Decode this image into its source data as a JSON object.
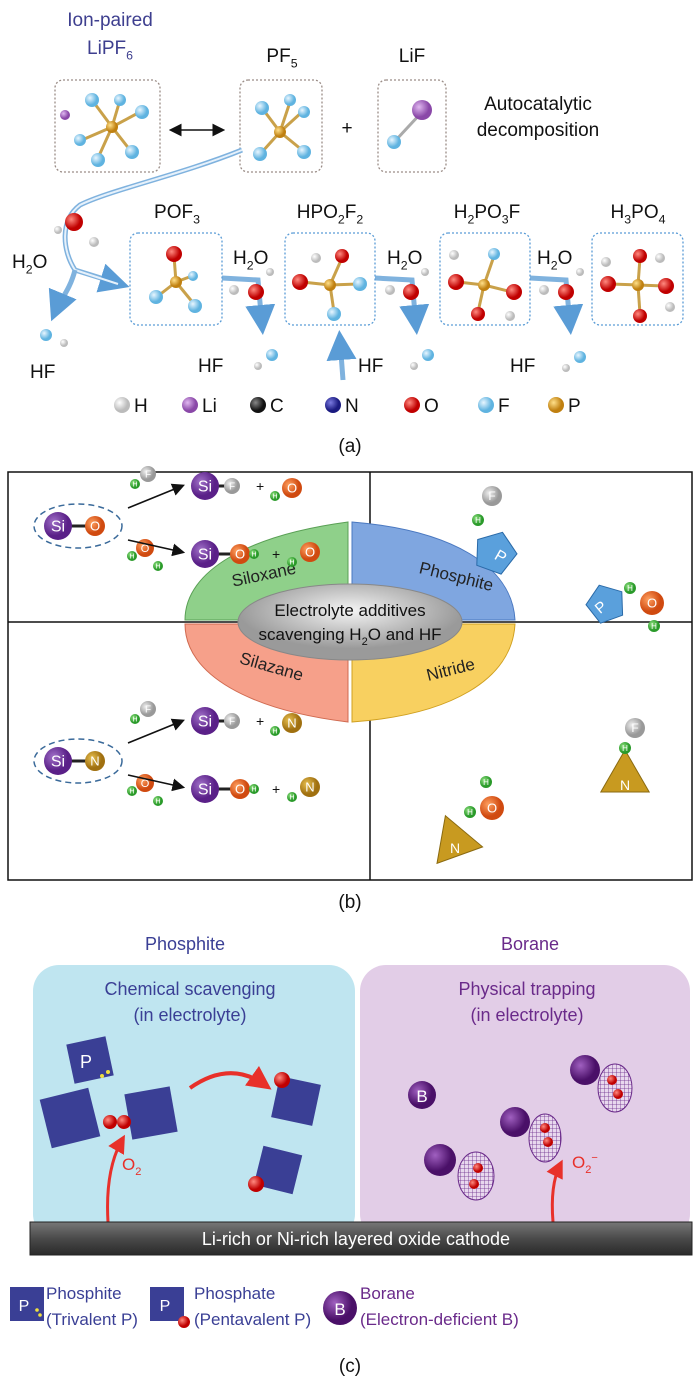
{
  "panel_a": {
    "ion_paired": "Ion-paired",
    "lipf6": "LiPF6",
    "pf5": "PF5",
    "lif": "LiF",
    "plus": "+",
    "autocatalytic": "Autocatalytic",
    "decomposition": "decomposition",
    "products": [
      "POF3",
      "HPO2F2",
      "H2PO3F",
      "H3PO4"
    ],
    "water": "H2O",
    "hf": "HF",
    "legend": [
      {
        "label": "H",
        "color": "#f2f2f2"
      },
      {
        "label": "Li",
        "color": "#9b59b6"
      },
      {
        "label": "C",
        "color": "#222222"
      },
      {
        "label": "N",
        "color": "#2a2a9a"
      },
      {
        "label": "O",
        "color": "#e01010"
      },
      {
        "label": "F",
        "color": "#7cc6ea"
      },
      {
        "label": "P",
        "color": "#e0a020"
      }
    ],
    "caption": "(a)"
  },
  "panel_b": {
    "center_line1": "Electrolyte additives",
    "center_line2": "scavenging H2O and HF",
    "sectors": [
      {
        "label": "Siloxane",
        "color": "#7cc47a"
      },
      {
        "label": "Phosphite",
        "color": "#6f9ad8"
      },
      {
        "label": "Silazane",
        "color": "#f3907a"
      },
      {
        "label": "Nitride",
        "color": "#f5c44a"
      }
    ],
    "atoms": {
      "si": "Si",
      "o": "O",
      "n": "N",
      "f": "F",
      "h": "H",
      "p": "P",
      "plus": "+"
    },
    "caption": "(b)"
  },
  "panel_c": {
    "left_title": "Phosphite",
    "right_title": "Borane",
    "left_box_line1": "Chemical scavenging",
    "left_box_line2": "(in electrolyte)",
    "right_box_line1": "Physical trapping",
    "right_box_line2": "(in electrolyte)",
    "o2": "O2",
    "o2_minus": "O2−",
    "p": "P",
    "b": "B",
    "cathode": "Li-rich or Ni-rich layered oxide cathode",
    "legend": [
      {
        "name": "Phosphite",
        "desc": "(Trivalent P)",
        "glyph": "P"
      },
      {
        "name": "Phosphate",
        "desc": "(Pentavalent P)",
        "glyph": "P"
      },
      {
        "name": "Borane",
        "desc": "(Electron-deficient B)",
        "glyph": "B"
      }
    ],
    "colors": {
      "left_bg": "#bfe5f0",
      "right_bg": "#e2cde7",
      "cathode": "#4a4a4a",
      "arrow": "#e8302a",
      "phosphite": "#3a3f95",
      "borane": "#6a2a8a"
    },
    "caption": "(c)"
  }
}
